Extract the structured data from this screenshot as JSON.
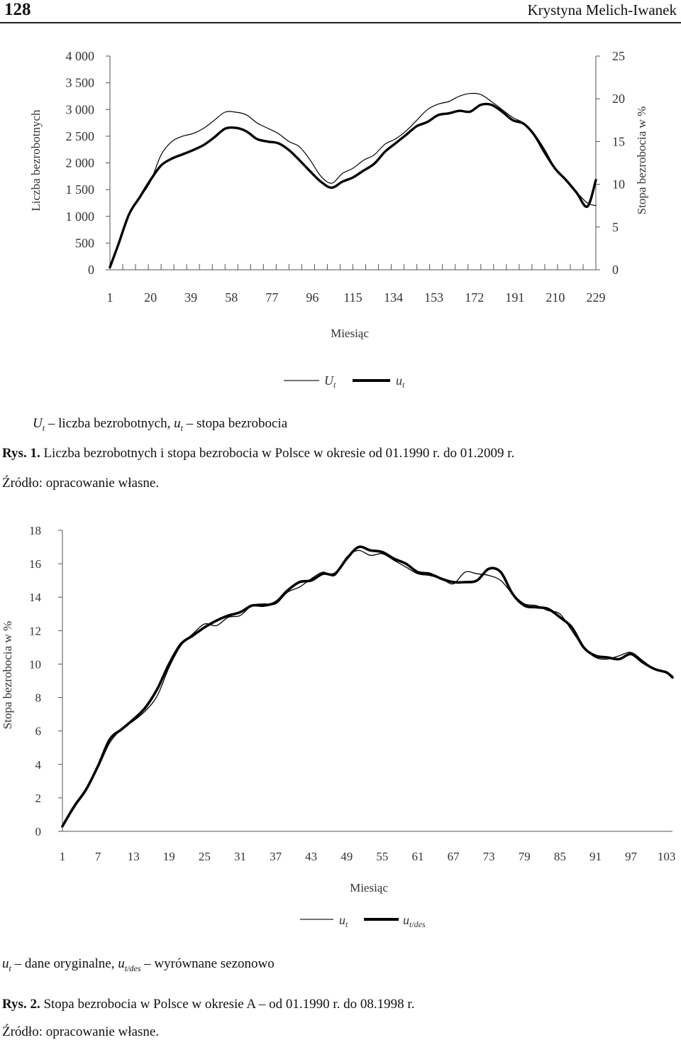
{
  "header": {
    "page_number": "128",
    "author": "Krystyna Melich-Iwanek"
  },
  "fig1": {
    "y_left_label": "Liczba bezrobotnych",
    "y_right_label": "Stopa  bezrobocia w %",
    "x_label": "Miesiąc",
    "y_left_ticks": [
      "0",
      "500",
      "1 000",
      "1 500",
      "2 000",
      "2 500",
      "3 000",
      "3 500",
      "4 000"
    ],
    "y_right_ticks": [
      "0",
      "5",
      "10",
      "15",
      "20",
      "25"
    ],
    "x_ticks": [
      "1",
      "20",
      "39",
      "58",
      "77",
      "96",
      "115",
      "134",
      "153",
      "172",
      "191",
      "210",
      "229"
    ],
    "legend": {
      "series1_main": "U",
      "series1_sub": "t",
      "series2_main": "u",
      "series2_sub": "t"
    },
    "note": {
      "sym1_main": "U",
      "sym1_sub": "t",
      "text1": " – liczba bezrobotnych, ",
      "sym2_main": "u",
      "sym2_sub": "t",
      "text2": " – stopa bezrobocia"
    },
    "caption_label": "Rys. 1.",
    "caption_text": " Liczba bezrobotnych i stopa bezrobocia w Polsce w okresie od 01.1990 r. do 01.2009 r.",
    "source": "Źródło: opracowanie własne."
  },
  "fig2": {
    "y_label": "Stopa bezrobocia w %",
    "x_label": "Miesiąc",
    "y_ticks": [
      "0",
      "2",
      "4",
      "6",
      "8",
      "10",
      "12",
      "14",
      "16",
      "18"
    ],
    "x_ticks": [
      "1",
      "7",
      "13",
      "19",
      "25",
      "31",
      "37",
      "43",
      "49",
      "55",
      "61",
      "67",
      "73",
      "79",
      "85",
      "91",
      "97",
      "103"
    ],
    "legend": {
      "series1_main": "u",
      "series1_sub": "t",
      "series2_main": "u",
      "series2_sub": "t/des"
    },
    "note": {
      "sym1_main": "u",
      "sym1_sub": "t",
      "text1": " – dane oryginalne, ",
      "sym2_main": "u",
      "sym2_sub": "t/des",
      "text2": " – wyrównane sezonowo"
    },
    "caption_label": "Rys. 2.",
    "caption_text": " Stopa bezrobocia w Polsce w okresie A – od 01.1990 r. do 08.1998 r.",
    "source": "Źródło: opracowanie własne."
  },
  "chart_data": [
    {
      "type": "line",
      "xlabel": "Miesiąc",
      "ylabel_left": "Liczba bezrobotnych",
      "ylabel_right": "Stopa  bezrobocia w %",
      "ylim_left": [
        0,
        4000
      ],
      "ylim_right": [
        0,
        25
      ],
      "xlim": [
        1,
        229
      ],
      "grid": false,
      "legend_position": "bottom",
      "series": [
        {
          "name": "U_t",
          "axis": "left",
          "style": "thin",
          "x": [
            1,
            5,
            10,
            15,
            20,
            25,
            30,
            35,
            40,
            45,
            50,
            55,
            60,
            65,
            70,
            75,
            80,
            85,
            90,
            95,
            100,
            105,
            110,
            115,
            120,
            125,
            130,
            135,
            140,
            145,
            150,
            155,
            160,
            165,
            170,
            175,
            180,
            185,
            190,
            195,
            200,
            205,
            210,
            215,
            220,
            225,
            229
          ],
          "values": [
            80,
            500,
            1050,
            1350,
            1650,
            2150,
            2400,
            2500,
            2550,
            2650,
            2800,
            2950,
            2950,
            2900,
            2750,
            2650,
            2550,
            2400,
            2300,
            2050,
            1750,
            1620,
            1800,
            1900,
            2050,
            2150,
            2350,
            2450,
            2600,
            2800,
            3000,
            3100,
            3150,
            3250,
            3300,
            3280,
            3150,
            3000,
            2850,
            2750,
            2550,
            2250,
            1900,
            1700,
            1450,
            1250,
            1200
          ]
        },
        {
          "name": "u_t",
          "axis": "right",
          "style": "thick",
          "x": [
            1,
            5,
            10,
            15,
            20,
            25,
            30,
            35,
            40,
            45,
            50,
            55,
            60,
            65,
            70,
            75,
            80,
            85,
            90,
            95,
            100,
            105,
            110,
            115,
            120,
            125,
            130,
            135,
            140,
            145,
            150,
            155,
            160,
            165,
            170,
            175,
            180,
            185,
            190,
            195,
            200,
            205,
            210,
            215,
            220,
            225,
            229
          ],
          "values": [
            0.3,
            3,
            6.5,
            8.5,
            10.5,
            12.2,
            13,
            13.5,
            14,
            14.6,
            15.5,
            16.5,
            16.6,
            16.2,
            15.3,
            15,
            14.8,
            14,
            12.8,
            11.5,
            10.3,
            9.6,
            10.3,
            10.8,
            11.6,
            12.4,
            13.8,
            14.8,
            15.8,
            16.8,
            17.3,
            18.1,
            18.3,
            18.6,
            18.5,
            19.3,
            19.3,
            18.5,
            17.5,
            17.1,
            15.8,
            13.7,
            11.8,
            10.5,
            9,
            7.4,
            10.5
          ]
        }
      ]
    },
    {
      "type": "line",
      "xlabel": "Miesiąc",
      "ylabel": "Stopa bezrobocia w %",
      "ylim": [
        0,
        18
      ],
      "xlim": [
        1,
        104
      ],
      "grid": false,
      "legend_position": "bottom",
      "series": [
        {
          "name": "u_t",
          "style": "thin",
          "x": [
            1,
            3,
            5,
            7,
            9,
            11,
            13,
            15,
            17,
            19,
            21,
            23,
            25,
            27,
            29,
            31,
            33,
            35,
            37,
            39,
            41,
            43,
            45,
            47,
            49,
            51,
            53,
            55,
            57,
            59,
            61,
            63,
            65,
            67,
            69,
            71,
            73,
            75,
            77,
            79,
            81,
            83,
            85,
            87,
            89,
            91,
            93,
            95,
            97,
            99,
            101,
            103,
            104
          ],
          "values": [
            0.3,
            1.4,
            2.6,
            3.8,
            5.3,
            6.1,
            6.6,
            7.2,
            8.1,
            9.8,
            11.1,
            11.8,
            12.4,
            12.3,
            12.8,
            12.9,
            13.5,
            13.6,
            13.6,
            14.3,
            14.6,
            15.1,
            15.5,
            15.3,
            16.4,
            16.8,
            16.5,
            16.6,
            16.2,
            15.8,
            15.4,
            15.3,
            15.1,
            14.8,
            15.5,
            15.4,
            15.3,
            15.0,
            14.2,
            13.6,
            13.5,
            13.2,
            13.0,
            12.0,
            11.0,
            10.4,
            10.3,
            10.5,
            10.7,
            10.2,
            9.7,
            9.5,
            9.3
          ]
        },
        {
          "name": "u_t/des",
          "style": "thick",
          "x": [
            1,
            3,
            5,
            7,
            9,
            11,
            13,
            15,
            17,
            19,
            21,
            23,
            25,
            27,
            29,
            31,
            33,
            35,
            37,
            39,
            41,
            43,
            45,
            47,
            49,
            51,
            53,
            55,
            57,
            59,
            61,
            63,
            65,
            67,
            69,
            71,
            73,
            75,
            77,
            79,
            81,
            83,
            85,
            87,
            89,
            91,
            93,
            95,
            97,
            99,
            101,
            103,
            104
          ],
          "values": [
            0.3,
            1.5,
            2.5,
            3.9,
            5.5,
            6.1,
            6.7,
            7.4,
            8.5,
            10.0,
            11.2,
            11.7,
            12.2,
            12.6,
            12.9,
            13.1,
            13.5,
            13.5,
            13.7,
            14.4,
            14.9,
            15.0,
            15.4,
            15.4,
            16.3,
            17.0,
            16.8,
            16.7,
            16.3,
            16.0,
            15.5,
            15.4,
            15.1,
            14.9,
            14.9,
            15.0,
            15.7,
            15.5,
            14.2,
            13.5,
            13.4,
            13.3,
            12.8,
            12.2,
            11.0,
            10.5,
            10.4,
            10.3,
            10.6,
            10.1,
            9.7,
            9.5,
            9.2
          ]
        }
      ]
    }
  ]
}
